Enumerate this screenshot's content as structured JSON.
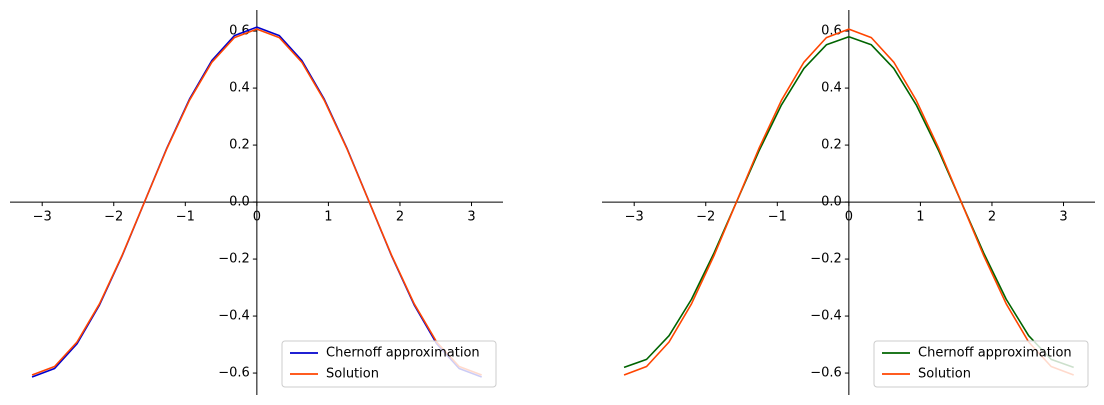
{
  "chart_data": [
    {
      "type": "line",
      "x": [
        -3.142,
        -2.827,
        -2.513,
        -2.199,
        -1.885,
        -1.571,
        -1.257,
        -0.942,
        -0.628,
        -0.314,
        0,
        0.314,
        0.628,
        0.942,
        1.257,
        1.571,
        1.885,
        2.199,
        2.513,
        2.827,
        3.142
      ],
      "series": [
        {
          "name": "Chernoff approximation",
          "color": "#0000cd",
          "values": [
            -0.614,
            -0.584,
            -0.497,
            -0.361,
            -0.19,
            0,
            0.19,
            0.361,
            0.497,
            0.584,
            0.614,
            0.584,
            0.497,
            0.361,
            0.19,
            0,
            -0.19,
            -0.361,
            -0.497,
            -0.584,
            -0.614
          ]
        },
        {
          "name": "Solution",
          "color": "#ff4500",
          "values": [
            -0.607,
            -0.577,
            -0.491,
            -0.357,
            -0.188,
            0,
            0.188,
            0.357,
            0.491,
            0.577,
            0.607,
            0.577,
            0.491,
            0.357,
            0.188,
            0,
            -0.188,
            -0.357,
            -0.491,
            -0.577,
            -0.607
          ]
        }
      ],
      "xlim": [
        -3.45,
        3.44
      ],
      "ylim": [
        -0.677,
        0.674
      ],
      "xticks": [
        {
          "value": -3,
          "label": "−3"
        },
        {
          "value": -2,
          "label": "−2"
        },
        {
          "value": -1,
          "label": "−1"
        },
        0,
        1,
        2,
        3
      ],
      "yticks": [
        {
          "value": -0.6,
          "label": "−0.6"
        },
        {
          "value": -0.4,
          "label": "−0.4"
        },
        {
          "value": -0.2,
          "label": "−0.2"
        },
        {
          "value": 0,
          "label": "0.0"
        },
        0.2,
        0.4,
        0.6
      ],
      "legend": "lower right"
    },
    {
      "type": "line",
      "x": [
        -3.142,
        -2.827,
        -2.513,
        -2.199,
        -1.885,
        -1.571,
        -1.257,
        -0.942,
        -0.628,
        -0.314,
        0,
        0.314,
        0.628,
        0.942,
        1.257,
        1.571,
        1.885,
        2.199,
        2.513,
        2.827,
        3.142
      ],
      "series": [
        {
          "name": "Chernoff approximation",
          "color": "#006400",
          "values": [
            -0.58,
            -0.552,
            -0.469,
            -0.341,
            -0.179,
            0,
            0.179,
            0.341,
            0.469,
            0.552,
            0.58,
            0.552,
            0.469,
            0.341,
            0.179,
            0,
            -0.179,
            -0.341,
            -0.469,
            -0.552,
            -0.58
          ]
        },
        {
          "name": "Solution",
          "color": "#ff4500",
          "values": [
            -0.607,
            -0.577,
            -0.491,
            -0.357,
            -0.188,
            0,
            0.188,
            0.357,
            0.491,
            0.577,
            0.607,
            0.577,
            0.491,
            0.357,
            0.188,
            0,
            -0.188,
            -0.357,
            -0.491,
            -0.577,
            -0.607
          ]
        }
      ],
      "xlim": [
        -3.45,
        3.44
      ],
      "ylim": [
        -0.677,
        0.674
      ],
      "xticks": [
        {
          "value": -3,
          "label": "−3"
        },
        {
          "value": -2,
          "label": "−2"
        },
        {
          "value": -1,
          "label": "−1"
        },
        0,
        1,
        2,
        3
      ],
      "yticks": [
        {
          "value": -0.6,
          "label": "−0.6"
        },
        {
          "value": -0.4,
          "label": "−0.4"
        },
        {
          "value": -0.2,
          "label": "−0.2"
        },
        {
          "value": 0,
          "label": "0.0"
        },
        0.2,
        0.4,
        0.6
      ],
      "legend": "lower right"
    }
  ]
}
